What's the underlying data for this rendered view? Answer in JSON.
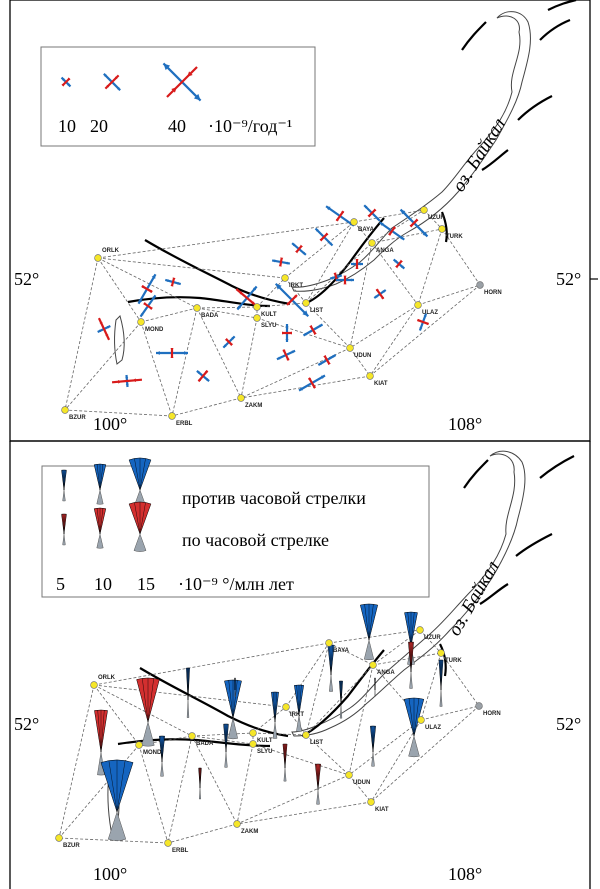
{
  "lake_label": "оз. Байкал",
  "axes": {
    "lat_label": "52°",
    "lon_left": "100°",
    "lon_right": "108°"
  },
  "colors": {
    "extension": "#1f6fbf",
    "compression": "#d81b1b",
    "ccw": "#1565c0",
    "cw": "#d32f2f",
    "sector_gray": "#9aa4ae",
    "station": "#f5e629",
    "fault": "#000000"
  },
  "top_panel": {
    "legend": {
      "scale_values": [
        "10",
        "20",
        "40"
      ],
      "unit": "·10⁻⁹/год⁻¹"
    }
  },
  "bottom_panel": {
    "legend": {
      "ccw_label": "против часовой стрелки",
      "cw_label": "по часовой стрелке",
      "scale_values": [
        "5",
        "10",
        "15"
      ],
      "unit": "·10⁻⁹ °/млн лет"
    }
  },
  "stations": [
    {
      "name": "ORLK"
    },
    {
      "name": "MOND"
    },
    {
      "name": "BADA"
    },
    {
      "name": "SLYU"
    },
    {
      "name": "KULT"
    },
    {
      "name": "IRKT"
    },
    {
      "name": "LIST"
    },
    {
      "name": "BAYA"
    },
    {
      "name": "ANGA"
    },
    {
      "name": "UZUR"
    },
    {
      "name": "TURK"
    },
    {
      "name": "ULAZ"
    },
    {
      "name": "HORN"
    },
    {
      "name": "UDUN"
    },
    {
      "name": "KIAT"
    },
    {
      "name": "ZAKM"
    },
    {
      "name": "ERBL"
    },
    {
      "name": "BZUR"
    }
  ]
}
